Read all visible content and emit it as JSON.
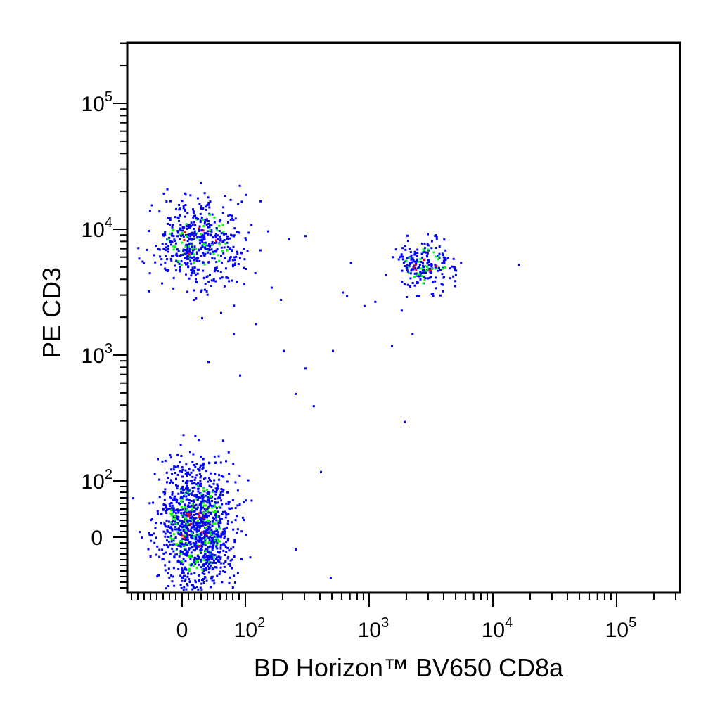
{
  "chart_data": {
    "type": "scatter",
    "style": "flow-cytometry pseudocolor dot plot",
    "xlabel": "BD Horizon™ BV650   CD8a",
    "ylabel": "PE   CD3",
    "x_scale": "biexponential",
    "y_scale": "biexponential",
    "x_ticks": [
      {
        "value": 0,
        "base": "0",
        "exp": ""
      },
      {
        "value": 100,
        "base": "10",
        "exp": "2"
      },
      {
        "value": 1000,
        "base": "10",
        "exp": "3"
      },
      {
        "value": 10000,
        "base": "10",
        "exp": "4"
      },
      {
        "value": 100000,
        "base": "10",
        "exp": "5"
      }
    ],
    "y_ticks": [
      {
        "value": 0,
        "base": "0",
        "exp": ""
      },
      {
        "value": 100,
        "base": "10",
        "exp": "2"
      },
      {
        "value": 1000,
        "base": "10",
        "exp": "3"
      },
      {
        "value": 10000,
        "base": "10",
        "exp": "4"
      },
      {
        "value": 100000,
        "base": "10",
        "exp": "5"
      }
    ],
    "density_colors": [
      "#0000ff",
      "#00ff00",
      "#ff0000"
    ],
    "populations": [
      {
        "x_center": 25,
        "x_spread": 35,
        "y_center": 8000,
        "y_spread_log": 0.17,
        "count": 550
      },
      {
        "x_center": 2800,
        "x_spread_log": 0.12,
        "y_center": 5200,
        "y_spread_log": 0.1,
        "count": 230
      },
      {
        "x_center": 20,
        "x_spread": 30,
        "y_center": 20,
        "y_spread": 60,
        "count": 1300
      }
    ],
    "sparse_points": [
      [
        60,
        2200
      ],
      [
        80,
        1500
      ],
      [
        120,
        1800
      ],
      [
        200,
        1100
      ],
      [
        300,
        800
      ],
      [
        250,
        500
      ],
      [
        500,
        1100
      ],
      [
        650,
        3000
      ],
      [
        900,
        2500
      ],
      [
        1100,
        2700
      ],
      [
        1500,
        1200
      ],
      [
        350,
        400
      ],
      [
        600,
        3200
      ],
      [
        1800,
        2300
      ],
      [
        2200,
        1500
      ],
      [
        1900,
        300
      ],
      [
        16000,
        5300
      ],
      [
        480,
        -70
      ],
      [
        250,
        -20
      ],
      [
        400,
        120
      ],
      [
        150,
        9800
      ],
      [
        130,
        17000
      ],
      [
        220,
        8500
      ],
      [
        300,
        9000
      ],
      [
        700,
        5500
      ],
      [
        160,
        3500
      ],
      [
        190,
        2800
      ],
      [
        90,
        700
      ],
      [
        40,
        900
      ],
      [
        30,
        2000
      ]
    ]
  }
}
